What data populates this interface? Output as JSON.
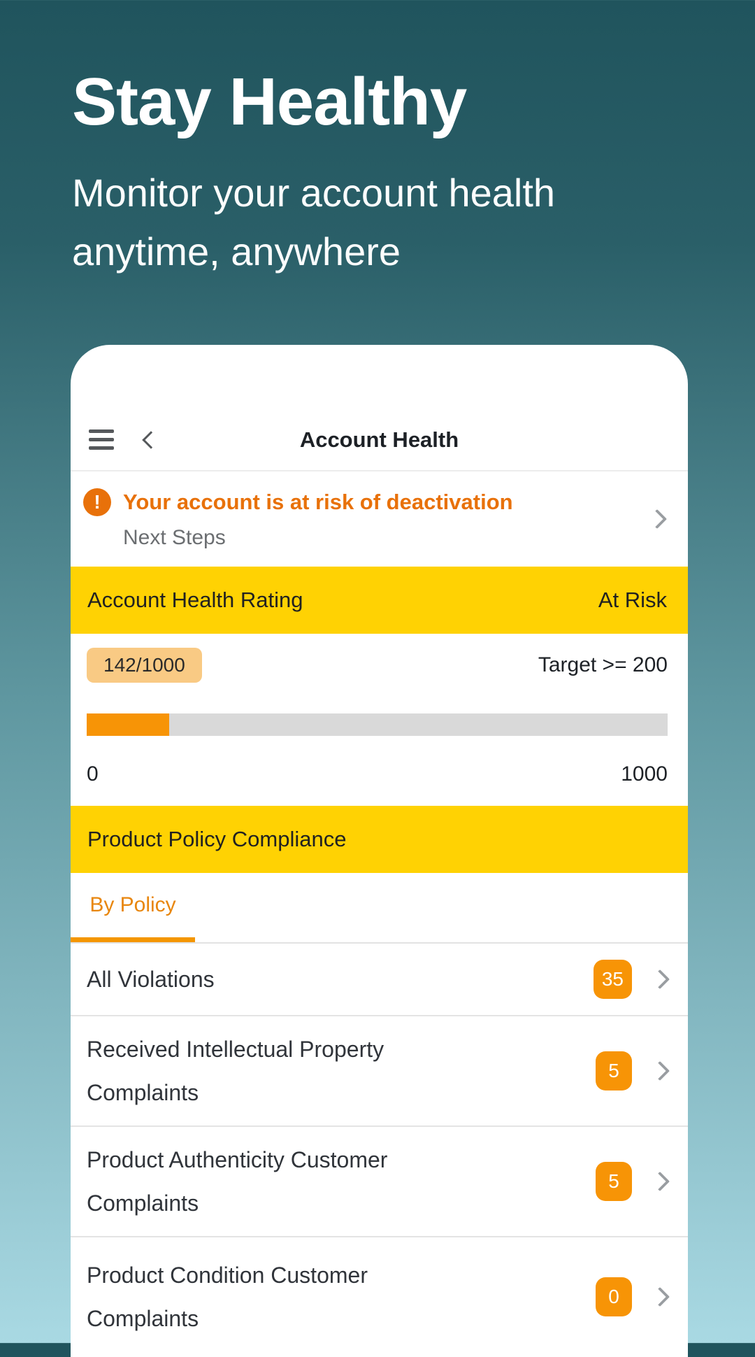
{
  "hero": {
    "title": "Stay Healthy",
    "subtitle": "Monitor your account health anytime, anywhere"
  },
  "nav": {
    "title": "Account Health"
  },
  "alert": {
    "title": "Your account is at risk of deactivation",
    "subtitle": "Next Steps"
  },
  "rating": {
    "header": "Account Health Rating",
    "status": "At Risk",
    "score_badge": "142/1000",
    "target": "Target >= 200",
    "progress_percent": 14.2,
    "scale_min": "0",
    "scale_max": "1000"
  },
  "compliance": {
    "header": "Product Policy Compliance",
    "tab": "By Policy",
    "rows": [
      {
        "label": "All Violations",
        "count": "35"
      },
      {
        "label": "Received Intellectual Property Complaints",
        "count": "5"
      },
      {
        "label": "Product Authenticity Customer Complaints",
        "count": "5"
      },
      {
        "label": "Product Condition Customer Complaints",
        "count": "0"
      }
    ]
  },
  "colors": {
    "background_top": "#20545D",
    "background_bottom": "#A9D9E3",
    "section_yellow": "#FFD203",
    "alert_orange": "#E8710A",
    "badge_orange": "#F79406",
    "score_badge_peach": "#F9CA84",
    "tab_orange": "#E8860D",
    "progress_track": "#D9D9D9"
  }
}
